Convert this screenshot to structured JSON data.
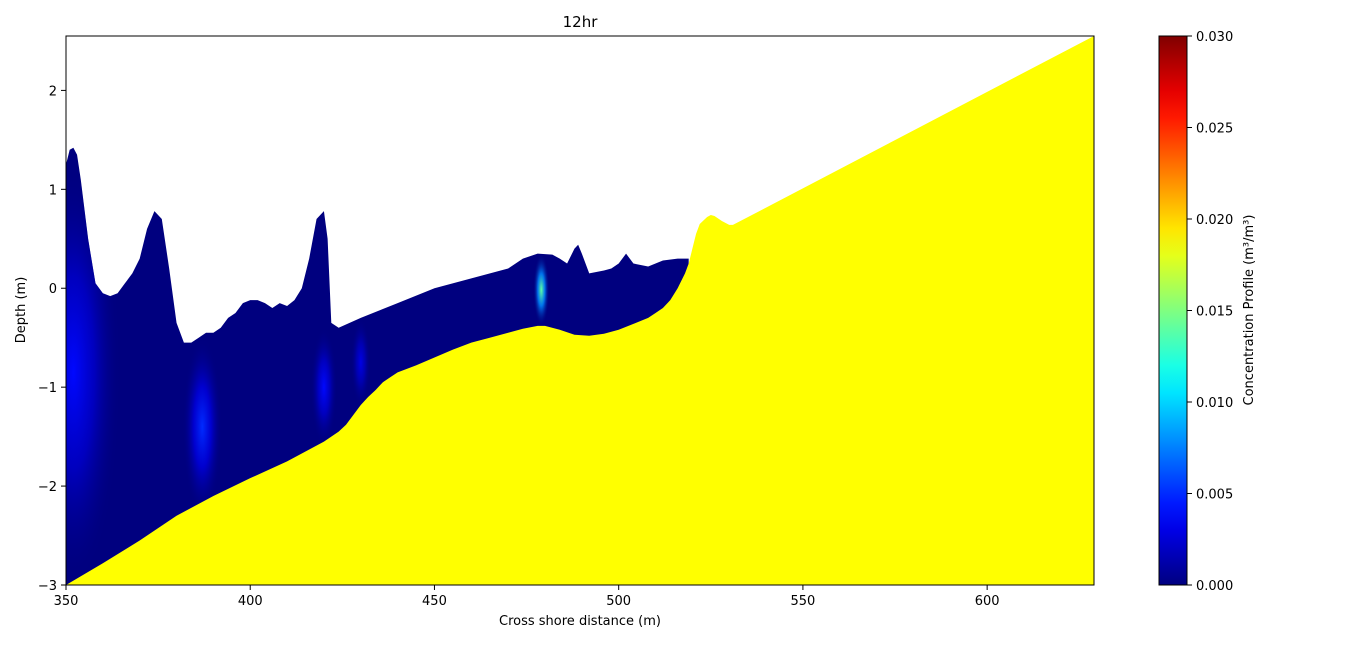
{
  "chart_data": {
    "type": "area",
    "title": "12hr",
    "xlabel": "Cross shore distance (m)",
    "ylabel": "Depth (m)",
    "xlim": [
      350,
      629
    ],
    "ylim": [
      -3,
      2.55
    ],
    "xticks": [
      350,
      400,
      450,
      500,
      550,
      600
    ],
    "yticks": [
      -3,
      -2,
      -1,
      0,
      1,
      2
    ],
    "grid": false,
    "series": [
      {
        "role": "water_surface",
        "color": "#00007f",
        "x": [
          350,
          351,
          352,
          353,
          354,
          356,
          358,
          360,
          362,
          364,
          366,
          368,
          370,
          372,
          374,
          376,
          378,
          380,
          382,
          384,
          386,
          388,
          390,
          392,
          394,
          396,
          398,
          400,
          402,
          404,
          406,
          408,
          410,
          412,
          414,
          416,
          418,
          420,
          421,
          422,
          424,
          430,
          440,
          450,
          460,
          470,
          474,
          478,
          482,
          484,
          486,
          488,
          489,
          490,
          492,
          496,
          498,
          500,
          502,
          504,
          508,
          512,
          516,
          518,
          519
        ],
        "y": [
          1.25,
          1.4,
          1.42,
          1.35,
          1.1,
          0.5,
          0.05,
          -0.05,
          -0.08,
          -0.05,
          0.05,
          0.15,
          0.3,
          0.6,
          0.78,
          0.7,
          0.2,
          -0.35,
          -0.55,
          -0.55,
          -0.5,
          -0.45,
          -0.45,
          -0.4,
          -0.3,
          -0.25,
          -0.15,
          -0.12,
          -0.12,
          -0.15,
          -0.2,
          -0.15,
          -0.18,
          -0.12,
          0.0,
          0.3,
          0.7,
          0.78,
          0.5,
          -0.35,
          -0.4,
          -0.3,
          -0.15,
          0.0,
          0.1,
          0.2,
          0.3,
          0.35,
          0.34,
          0.3,
          0.25,
          0.4,
          0.44,
          0.35,
          0.15,
          0.18,
          0.2,
          0.25,
          0.35,
          0.25,
          0.22,
          0.28,
          0.3,
          0.3,
          0.3
        ]
      },
      {
        "role": "bed_profile",
        "color": "#ffff00",
        "x": [
          350,
          360,
          370,
          380,
          390,
          400,
          410,
          415,
          420,
          422,
          424,
          426,
          428,
          430,
          432,
          434,
          436,
          438,
          440,
          445,
          450,
          455,
          460,
          465,
          470,
          474,
          478,
          480,
          484,
          488,
          492,
          496,
          500,
          504,
          508,
          510,
          512,
          514,
          516,
          518,
          519,
          520,
          521,
          522,
          524,
          525,
          526,
          528,
          530,
          531,
          629
        ],
        "y": [
          -3.0,
          -2.78,
          -2.55,
          -2.3,
          -2.1,
          -1.92,
          -1.75,
          -1.65,
          -1.55,
          -1.5,
          -1.45,
          -1.38,
          -1.28,
          -1.18,
          -1.1,
          -1.03,
          -0.95,
          -0.9,
          -0.85,
          -0.78,
          -0.7,
          -0.62,
          -0.55,
          -0.5,
          -0.45,
          -0.41,
          -0.38,
          -0.38,
          -0.42,
          -0.47,
          -0.48,
          -0.46,
          -0.42,
          -0.36,
          -0.3,
          -0.25,
          -0.2,
          -0.12,
          0.0,
          0.15,
          0.25,
          0.4,
          0.55,
          0.65,
          0.72,
          0.74,
          0.73,
          0.68,
          0.64,
          0.64,
          2.55
        ]
      }
    ],
    "concentration_plumes": [
      {
        "x": 479,
        "y_top": 0.35,
        "y_bottom": -0.38,
        "peak": 0.014
      },
      {
        "x": 387,
        "y_top": -0.5,
        "y_bottom": -2.3,
        "peak": 0.005
      },
      {
        "x": 352,
        "y_top": 1.3,
        "y_bottom": -3.0,
        "peak": 0.004
      },
      {
        "x": 420,
        "y_top": -0.4,
        "y_bottom": -1.6,
        "peak": 0.004
      },
      {
        "x": 430,
        "y_top": -0.3,
        "y_bottom": -1.2,
        "peak": 0.003
      }
    ],
    "colorbar": {
      "label": "Concentration Profile (m³/m³)",
      "colormap": "jet",
      "range": [
        0,
        0.03
      ],
      "ticks": [
        "0.000",
        "0.005",
        "0.010",
        "0.015",
        "0.020",
        "0.025",
        "0.030"
      ]
    }
  }
}
